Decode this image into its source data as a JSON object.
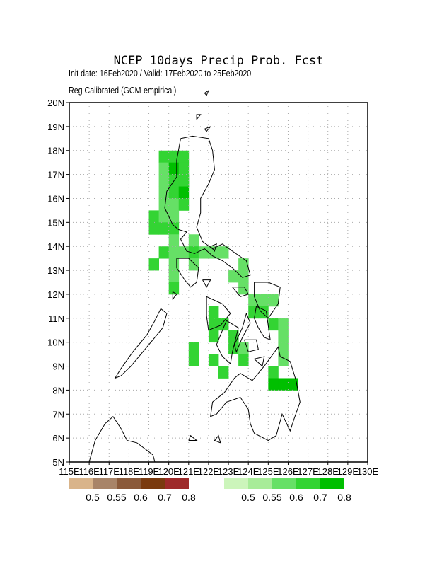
{
  "title": "NCEP 10days Precip Prob. Fcst",
  "subtitle_1": "Init date: 16Feb2020 / Valid: 17Feb2020 to 25Feb2020",
  "subtitle_2": "Reg Calibrated (GCM-empirical)",
  "lat_labels": [
    "5N",
    "6N",
    "7N",
    "8N",
    "9N",
    "10N",
    "11N",
    "12N",
    "13N",
    "14N",
    "15N",
    "16N",
    "17N",
    "18N",
    "19N",
    "20N"
  ],
  "lon_labels": [
    "115E",
    "116E",
    "117E",
    "118E",
    "119E",
    "120E",
    "121E",
    "122E",
    "123E",
    "124E",
    "125E",
    "126E",
    "127E",
    "128E",
    "129E",
    "130E"
  ],
  "dry_legend": {
    "colors": [
      "#d9b48a",
      "#a88468",
      "#8a5a3a",
      "#7a3a0e",
      "#9e2a2a"
    ],
    "labels": [
      "0.5",
      "0.55",
      "0.6",
      "0.7",
      "0.8"
    ]
  },
  "wet_legend": {
    "colors": [
      "#ccf5bb",
      "#a8ec99",
      "#66e066",
      "#33d433",
      "#00bf00"
    ],
    "labels": [
      "0.5",
      "0.55",
      "0.6",
      "0.7",
      "0.8"
    ]
  },
  "chart_data": {
    "type": "heatmap",
    "x_range": [
      115,
      130
    ],
    "y_range": [
      5,
      20
    ],
    "cell_size_deg": 0.5,
    "note_values": "cells: [lon_west, lat_south, probability]",
    "cells": [
      [
        119.5,
        17.5,
        0.7
      ],
      [
        120.0,
        17.5,
        0.7
      ],
      [
        120.5,
        17.5,
        0.7
      ],
      [
        119.5,
        17.0,
        0.6
      ],
      [
        120.0,
        17.0,
        0.8
      ],
      [
        120.5,
        17.0,
        0.7
      ],
      [
        119.5,
        16.5,
        0.6
      ],
      [
        120.0,
        16.5,
        0.7
      ],
      [
        120.5,
        16.5,
        0.7
      ],
      [
        120.5,
        16.5,
        0.7
      ],
      [
        120.5,
        16.5,
        0.7
      ],
      [
        119.5,
        16.0,
        0.6
      ],
      [
        120.0,
        16.0,
        0.7
      ],
      [
        120.5,
        16.0,
        0.8
      ],
      [
        119.5,
        15.5,
        0.6
      ],
      [
        120.0,
        15.5,
        0.6
      ],
      [
        120.5,
        15.5,
        0.7
      ],
      [
        119.0,
        15.0,
        0.7
      ],
      [
        119.5,
        15.0,
        0.6
      ],
      [
        120.0,
        15.0,
        0.6
      ],
      [
        119.0,
        14.5,
        0.7
      ],
      [
        119.5,
        14.5,
        0.7
      ],
      [
        120.0,
        14.5,
        0.7
      ],
      [
        120.0,
        14.0,
        0.6
      ],
      [
        121.0,
        14.0,
        0.6
      ],
      [
        119.5,
        13.5,
        0.7
      ],
      [
        120.0,
        13.5,
        0.6
      ],
      [
        120.5,
        13.5,
        0.6
      ],
      [
        121.0,
        13.5,
        0.7
      ],
      [
        121.5,
        13.5,
        0.6
      ],
      [
        122.0,
        13.5,
        0.6
      ],
      [
        122.5,
        13.5,
        0.6
      ],
      [
        119.0,
        13.0,
        0.7
      ],
      [
        120.0,
        13.0,
        0.6
      ],
      [
        121.0,
        13.0,
        0.6
      ],
      [
        123.5,
        13.0,
        0.6
      ],
      [
        120.0,
        12.5,
        0.6
      ],
      [
        123.0,
        12.5,
        0.6
      ],
      [
        123.5,
        12.5,
        0.6
      ],
      [
        120.0,
        12.0,
        0.7
      ],
      [
        123.5,
        12.0,
        0.6
      ],
      [
        124.0,
        11.5,
        0.6
      ],
      [
        125.0,
        11.5,
        0.6
      ],
      [
        124.5,
        11.5,
        0.6
      ],
      [
        122.0,
        11.0,
        0.7
      ],
      [
        124.0,
        11.0,
        0.7
      ],
      [
        124.5,
        11.0,
        0.7
      ],
      [
        122.0,
        10.5,
        0.7
      ],
      [
        122.5,
        10.5,
        0.7
      ],
      [
        125.0,
        10.5,
        0.7
      ],
      [
        125.5,
        10.5,
        0.6
      ],
      [
        122.0,
        10.0,
        0.7
      ],
      [
        123.0,
        10.0,
        0.7
      ],
      [
        125.5,
        10.0,
        0.6
      ],
      [
        123.0,
        9.5,
        0.7
      ],
      [
        123.5,
        9.5,
        0.6
      ],
      [
        125.5,
        9.5,
        0.6
      ],
      [
        122.0,
        9.0,
        0.7
      ],
      [
        123.5,
        9.0,
        0.7
      ],
      [
        125.5,
        9.0,
        0.6
      ],
      [
        122.5,
        8.5,
        0.7
      ],
      [
        125.0,
        8.5,
        0.7
      ],
      [
        125.0,
        8.0,
        0.8
      ],
      [
        125.5,
        8.0,
        0.8
      ],
      [
        126.0,
        8.0,
        0.8
      ],
      [
        121.0,
        9.5,
        0.7
      ],
      [
        121.0,
        9.0,
        0.7
      ]
    ]
  }
}
